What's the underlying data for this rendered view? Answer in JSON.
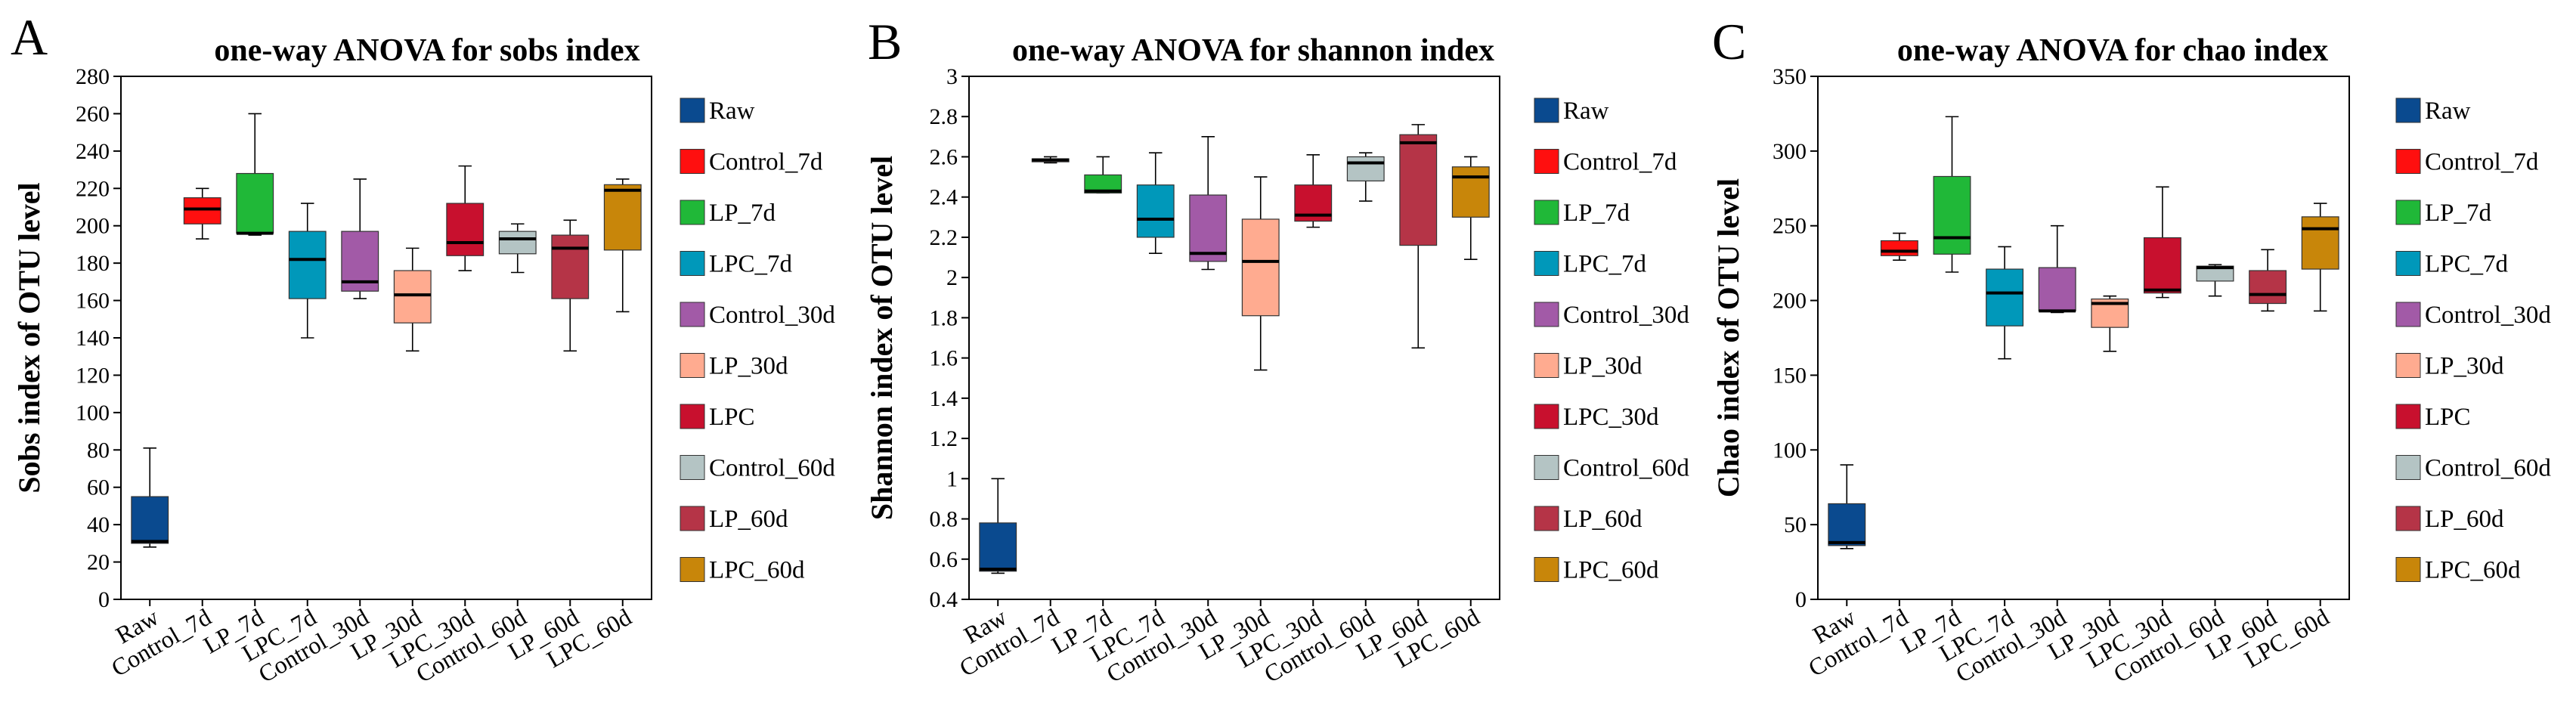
{
  "chart_data": [
    {
      "type": "box",
      "letter": "A",
      "title": "one-way ANOVA for sobs index",
      "ylabel": "Sobs index of OTU level",
      "xlabel": "",
      "ylim": [
        0,
        280
      ],
      "yticks": [
        0,
        20,
        40,
        60,
        80,
        100,
        120,
        140,
        160,
        180,
        200,
        220,
        240,
        260,
        280
      ],
      "ytick_labels": [
        "0",
        "20",
        "40",
        "60",
        "80",
        "100",
        "120",
        "140",
        "160",
        "180",
        "200",
        "220",
        "240",
        "260",
        "280"
      ],
      "categories": [
        "Raw",
        "Control_7d",
        "LP_7d",
        "LPC_7d",
        "Control_30d",
        "LP_30d",
        "LPC_30d",
        "Control_60d",
        "LP_60d",
        "LPC_60d"
      ],
      "legend": [
        "Raw",
        "Control_7d",
        "LP_7d",
        "LPC_7d",
        "Control_30d",
        "LP_30d",
        "LPC",
        "Control_60d",
        "LP_60d",
        "LPC_60d"
      ],
      "legend_position": "right",
      "boxes": [
        {
          "min": 28,
          "q1": 30,
          "median": 31,
          "q3": 55,
          "max": 81
        },
        {
          "min": 193,
          "q1": 201,
          "median": 209,
          "q3": 215,
          "max": 220
        },
        {
          "min": 195,
          "q1": 196,
          "median": 196,
          "q3": 228,
          "max": 260
        },
        {
          "min": 140,
          "q1": 161,
          "median": 182,
          "q3": 197,
          "max": 212
        },
        {
          "min": 161,
          "q1": 165,
          "median": 170,
          "q3": 197,
          "max": 225
        },
        {
          "min": 133,
          "q1": 148,
          "median": 163,
          "q3": 176,
          "max": 188
        },
        {
          "min": 176,
          "q1": 184,
          "median": 191,
          "q3": 212,
          "max": 232
        },
        {
          "min": 175,
          "q1": 185,
          "median": 193,
          "q3": 197,
          "max": 201
        },
        {
          "min": 133,
          "q1": 161,
          "median": 188,
          "q3": 195,
          "max": 203
        },
        {
          "min": 154,
          "q1": 187,
          "median": 219,
          "q3": 222,
          "max": 225
        }
      ]
    },
    {
      "type": "box",
      "letter": "B",
      "title": "one-way ANOVA for shannon index",
      "ylabel": "Shannon index of OTU level",
      "xlabel": "",
      "ylim": [
        0.4,
        3
      ],
      "yticks": [
        0.4,
        0.6,
        0.8,
        1,
        1.2,
        1.4,
        1.6,
        1.8,
        2,
        2.2,
        2.4,
        2.6,
        2.8,
        3
      ],
      "ytick_labels": [
        "0.4",
        "0.6",
        "0.8",
        "1",
        "1.2",
        "1.4",
        "1.6",
        "1.8",
        "2",
        "2.2",
        "2.4",
        "2.6",
        "2.8",
        "3"
      ],
      "categories": [
        "Raw",
        "Control_7d",
        "LP_7d",
        "LPC_7d",
        "Control_30d",
        "LP_30d",
        "LPC_30d",
        "Control_60d",
        "LP_60d",
        "LPC_60d"
      ],
      "legend": [
        "Raw",
        "Control_7d",
        "LP_7d",
        "LPC_7d",
        "Control_30d",
        "LP_30d",
        "LPC_30d",
        "Control_60d",
        "LP_60d",
        "LPC_60d"
      ],
      "legend_position": "right",
      "boxes": [
        {
          "min": 0.53,
          "q1": 0.54,
          "median": 0.55,
          "q3": 0.78,
          "max": 1.0
        },
        {
          "min": 2.57,
          "q1": 2.575,
          "median": 2.585,
          "q3": 2.59,
          "max": 2.6
        },
        {
          "min": 2.42,
          "q1": 2.42,
          "median": 2.43,
          "q3": 2.51,
          "max": 2.6
        },
        {
          "min": 2.12,
          "q1": 2.2,
          "median": 2.29,
          "q3": 2.46,
          "max": 2.62
        },
        {
          "min": 2.04,
          "q1": 2.08,
          "median": 2.12,
          "q3": 2.41,
          "max": 2.7
        },
        {
          "min": 1.54,
          "q1": 1.81,
          "median": 2.08,
          "q3": 2.29,
          "max": 2.5
        },
        {
          "min": 2.25,
          "q1": 2.28,
          "median": 2.31,
          "q3": 2.46,
          "max": 2.61
        },
        {
          "min": 2.38,
          "q1": 2.48,
          "median": 2.57,
          "q3": 2.6,
          "max": 2.62
        },
        {
          "min": 1.65,
          "q1": 2.16,
          "median": 2.67,
          "q3": 2.71,
          "max": 2.76
        },
        {
          "min": 2.09,
          "q1": 2.3,
          "median": 2.5,
          "q3": 2.55,
          "max": 2.6
        }
      ]
    },
    {
      "type": "box",
      "letter": "C",
      "title": "one-way ANOVA for chao index",
      "ylabel": "Chao index of OTU level",
      "xlabel": "",
      "ylim": [
        0,
        350
      ],
      "yticks": [
        0,
        50,
        100,
        150,
        200,
        250,
        300,
        350
      ],
      "ytick_labels": [
        "0",
        "50",
        "100",
        "150",
        "200",
        "250",
        "300",
        "350"
      ],
      "categories": [
        "Raw",
        "Control_7d",
        "LP_7d",
        "LPC_7d",
        "Control_30d",
        "LP_30d",
        "LPC_30d",
        "Control_60d",
        "LP_60d",
        "LPC_60d"
      ],
      "legend": [
        "Raw",
        "Control_7d",
        "LP_7d",
        "LPC_7d",
        "Control_30d",
        "LP_30d",
        "LPC",
        "Control_60d",
        "LP_60d",
        "LPC_60d"
      ],
      "legend_position": "right",
      "boxes": [
        {
          "min": 34,
          "q1": 36,
          "median": 38,
          "q3": 64,
          "max": 90
        },
        {
          "min": 227,
          "q1": 230,
          "median": 233,
          "q3": 240,
          "max": 245
        },
        {
          "min": 219,
          "q1": 231,
          "median": 242,
          "q3": 283,
          "max": 323
        },
        {
          "min": 161,
          "q1": 183,
          "median": 205,
          "q3": 221,
          "max": 236
        },
        {
          "min": 192,
          "q1": 193,
          "median": 193,
          "q3": 222,
          "max": 250
        },
        {
          "min": 166,
          "q1": 182,
          "median": 198,
          "q3": 201,
          "max": 203
        },
        {
          "min": 202,
          "q1": 205,
          "median": 207,
          "q3": 242,
          "max": 276
        },
        {
          "min": 203,
          "q1": 213,
          "median": 222,
          "q3": 223,
          "max": 224
        },
        {
          "min": 193,
          "q1": 198,
          "median": 204,
          "q3": 220,
          "max": 234
        },
        {
          "min": 193,
          "q1": 221,
          "median": 248,
          "q3": 256,
          "max": 265
        }
      ]
    }
  ],
  "group_colors": [
    "#0a4a8f",
    "#ff0f0f",
    "#20b838",
    "#0098ba",
    "#a25aa7",
    "#ffab90",
    "#c8102e",
    "#b4c4c4",
    "#b53447",
    "#c8860a"
  ]
}
